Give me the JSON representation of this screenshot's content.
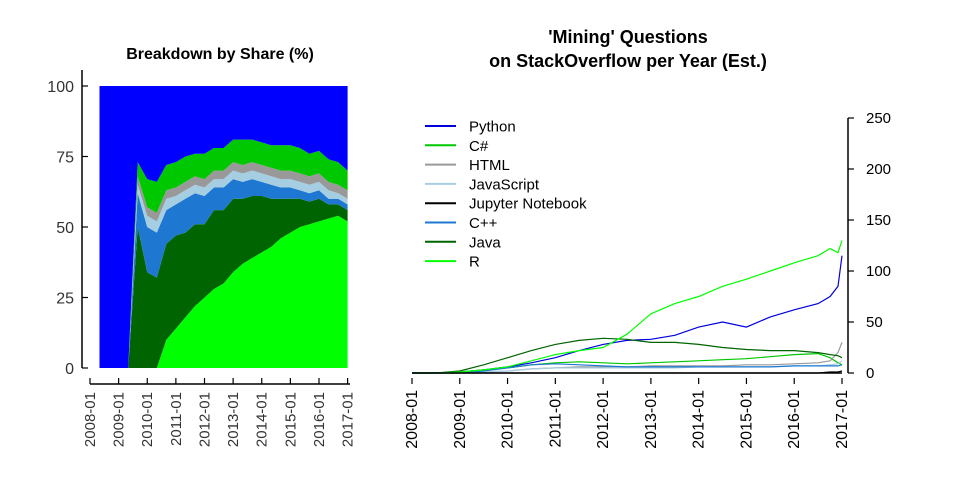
{
  "chart_data": [
    {
      "type": "area",
      "title": "Breakdown by Share (%)",
      "xlabel": "",
      "ylabel": "",
      "stacked": true,
      "ylim": [
        0,
        100
      ],
      "yticks": [
        0,
        25,
        50,
        75,
        100
      ],
      "xlim": [
        "2008-01",
        "2017-02"
      ],
      "xticks": [
        "2008-01",
        "2009-01",
        "2010-01",
        "2011-01",
        "2012-01",
        "2013-01",
        "2014-01",
        "2015-01",
        "2016-01",
        "2017-01"
      ],
      "x": [
        "2008-05",
        "2008-09",
        "2009-01",
        "2009-05",
        "2009-09",
        "2010-01",
        "2010-05",
        "2010-09",
        "2011-01",
        "2011-05",
        "2011-09",
        "2012-01",
        "2012-05",
        "2012-09",
        "2013-01",
        "2013-05",
        "2013-09",
        "2014-01",
        "2014-05",
        "2014-09",
        "2015-01",
        "2015-05",
        "2015-09",
        "2016-01",
        "2016-05",
        "2016-09",
        "2017-01"
      ],
      "series": [
        {
          "name": "R",
          "color": "#00ff00",
          "values": [
            0,
            0,
            0,
            0,
            0,
            0,
            0,
            10,
            14,
            18,
            22,
            25,
            28,
            30,
            34,
            37,
            39,
            41,
            43,
            46,
            48,
            50,
            51,
            52,
            53,
            54,
            52
          ]
        },
        {
          "name": "Java",
          "color": "#006400",
          "values": [
            0,
            0,
            0,
            0,
            50,
            34,
            32,
            34,
            33,
            30,
            29,
            26,
            28,
            26,
            26,
            23,
            22,
            20,
            17,
            14,
            12,
            10,
            8,
            8,
            5,
            4,
            4
          ]
        },
        {
          "name": "C++",
          "color": "#1e78d2",
          "values": [
            0,
            0,
            0,
            0,
            12,
            16,
            16,
            12,
            11,
            12,
            11,
            10,
            8,
            8,
            7,
            6,
            6,
            5,
            5,
            4,
            4,
            3,
            3,
            3,
            2,
            2,
            2
          ]
        },
        {
          "name": "Jupyter Notebook",
          "color": "#000000",
          "values": [
            0,
            0,
            0,
            0,
            0,
            0,
            0,
            0,
            0,
            0,
            0,
            0,
            0,
            0,
            0,
            0,
            0,
            0,
            0,
            0,
            0,
            0,
            0,
            0,
            0,
            0,
            0
          ]
        },
        {
          "name": "JavaScript",
          "color": "#a6cee3",
          "values": [
            0,
            0,
            0,
            0,
            3,
            4,
            4,
            4,
            3,
            3,
            3,
            3,
            3,
            3,
            3,
            3,
            3,
            3,
            3,
            3,
            3,
            3,
            3,
            3,
            3,
            2,
            2
          ]
        },
        {
          "name": "HTML",
          "color": "#999999",
          "values": [
            0,
            0,
            0,
            0,
            3,
            3,
            3,
            3,
            3,
            3,
            3,
            3,
            3,
            3,
            3,
            3,
            3,
            3,
            3,
            3,
            3,
            3,
            3,
            3,
            3,
            3,
            3
          ]
        },
        {
          "name": "C#",
          "color": "#00c800",
          "values": [
            0,
            0,
            0,
            0,
            5,
            10,
            11,
            9,
            9,
            9,
            8,
            9,
            8,
            8,
            8,
            9,
            8,
            8,
            8,
            9,
            9,
            9,
            8,
            8,
            8,
            8,
            7
          ]
        },
        {
          "name": "Python",
          "color": "#0000ff",
          "values": [
            100,
            100,
            100,
            100,
            27,
            33,
            34,
            28,
            27,
            25,
            24,
            24,
            22,
            22,
            19,
            19,
            19,
            20,
            21,
            21,
            21,
            22,
            24,
            23,
            26,
            27,
            30
          ]
        }
      ]
    },
    {
      "type": "line",
      "title": "'Mining' Questions\non StackOverflow per Year (Est.)",
      "xlabel": "",
      "ylabel": "",
      "ylim": [
        0,
        250
      ],
      "yticks": [
        0,
        50,
        100,
        150,
        200,
        250
      ],
      "y_axis_side": "right",
      "xlim": [
        "2008-01",
        "2017-01"
      ],
      "xticks": [
        "2008-01",
        "2009-01",
        "2010-01",
        "2011-01",
        "2012-01",
        "2013-01",
        "2014-01",
        "2015-01",
        "2016-01",
        "2017-01"
      ],
      "legend": "top-left",
      "x": [
        "2008-01",
        "2008-07",
        "2009-01",
        "2009-07",
        "2010-01",
        "2010-07",
        "2011-01",
        "2011-07",
        "2012-01",
        "2012-07",
        "2013-01",
        "2013-07",
        "2014-01",
        "2014-07",
        "2015-01",
        "2015-07",
        "2016-01",
        "2016-07",
        "2016-10",
        "2016-12",
        "2017-01"
      ],
      "series": [
        {
          "name": "Python",
          "color": "#0000dd",
          "values": [
            0,
            0,
            1,
            3,
            6,
            10,
            15,
            22,
            28,
            32,
            33,
            37,
            45,
            50,
            45,
            55,
            62,
            68,
            75,
            85,
            115
          ]
        },
        {
          "name": "C#",
          "color": "#00c800",
          "values": [
            0,
            0,
            1,
            3,
            5,
            8,
            10,
            11,
            10,
            9,
            10,
            11,
            12,
            13,
            14,
            16,
            18,
            19,
            15,
            10,
            8
          ]
        },
        {
          "name": "HTML",
          "color": "#999999",
          "values": [
            0,
            0,
            0,
            1,
            2,
            4,
            5,
            6,
            6,
            6,
            7,
            7,
            7,
            7,
            8,
            8,
            9,
            10,
            12,
            20,
            30
          ]
        },
        {
          "name": "JavaScript",
          "color": "#a6cee3",
          "values": [
            0,
            0,
            0,
            1,
            2,
            4,
            5,
            5,
            5,
            5,
            5,
            5,
            6,
            6,
            6,
            6,
            7,
            7,
            8,
            9,
            12
          ]
        },
        {
          "name": "Jupyter Notebook",
          "color": "#000000",
          "values": [
            0,
            0,
            0,
            0,
            0,
            0,
            0,
            0,
            0,
            0,
            0,
            0,
            0,
            0,
            0,
            0,
            0,
            0,
            1,
            1,
            2
          ]
        },
        {
          "name": "C++",
          "color": "#1e78d2",
          "values": [
            0,
            0,
            0,
            2,
            5,
            8,
            9,
            8,
            7,
            6,
            6,
            6,
            6,
            6,
            6,
            6,
            7,
            7,
            7,
            7,
            8
          ]
        },
        {
          "name": "Java",
          "color": "#006400",
          "values": [
            0,
            0,
            2,
            8,
            15,
            22,
            28,
            32,
            34,
            33,
            30,
            30,
            28,
            25,
            23,
            22,
            22,
            20,
            18,
            17,
            15
          ]
        },
        {
          "name": "R",
          "color": "#00ff00",
          "values": [
            0,
            0,
            1,
            3,
            6,
            12,
            18,
            22,
            25,
            38,
            58,
            68,
            75,
            85,
            92,
            100,
            108,
            115,
            122,
            118,
            130
          ]
        }
      ]
    }
  ]
}
